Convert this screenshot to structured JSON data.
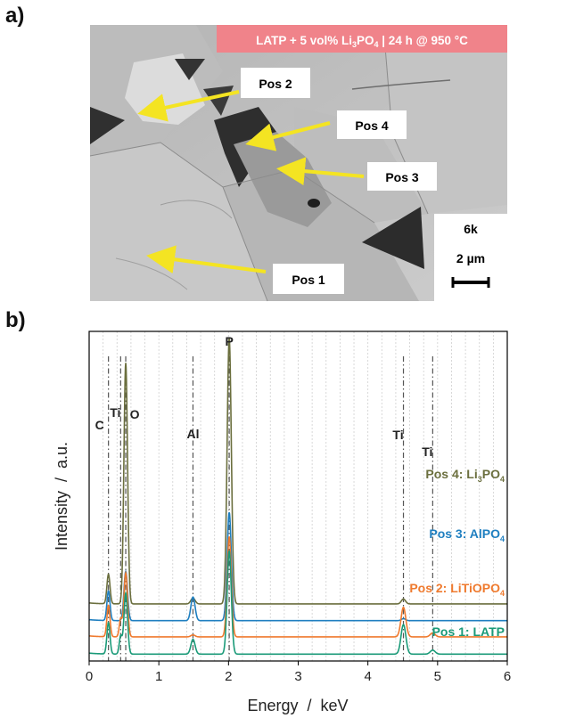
{
  "panel_a": {
    "letter": "a)",
    "banner": {
      "pre": "LATP + 5 vol% Li",
      "sub1": "3",
      "mid": "PO",
      "sub2": "4",
      "post": " | 24 h @ 950 °C",
      "color": "#f0838a"
    },
    "positions": [
      {
        "label": "Pos 1"
      },
      {
        "label": "Pos 2"
      },
      {
        "label": "Pos 3"
      },
      {
        "label": "Pos 4"
      }
    ],
    "scale": {
      "magnification": "6k",
      "length": "2 µm"
    },
    "arrow_color": "#f4e422"
  },
  "panel_b": {
    "letter": "b)"
  },
  "chart_data": {
    "type": "line",
    "xlabel": "Energy  /  keV",
    "ylabel": "Intensity  /  a.u.",
    "xlim": [
      0,
      6
    ],
    "xticks": [
      0,
      1,
      2,
      3,
      4,
      5,
      6
    ],
    "xtick_labels": [
      "0",
      "1",
      "2",
      "3",
      "4",
      "5",
      "6"
    ],
    "grid": true,
    "peak_lines": [
      {
        "label": "C",
        "x": 0.277
      },
      {
        "label": "Ti",
        "x": 0.452
      },
      {
        "label": "O",
        "x": 0.525
      },
      {
        "label": "Al",
        "x": 1.49
      },
      {
        "label": "P",
        "x": 2.01
      },
      {
        "label": "Ti",
        "x": 4.51
      },
      {
        "label": "Ti",
        "x": 4.93
      }
    ],
    "series": [
      {
        "name": "Pos 4: Li3PO4",
        "legend_main": "Pos 4: Li",
        "legend_sub1": "3",
        "legend_mid": "PO",
        "legend_sub2": "4",
        "color": "#6b6f3e",
        "baseline": 0.58,
        "peaks": [
          {
            "x": 0.277,
            "h": 0.3,
            "w": 0.022
          },
          {
            "x": 0.525,
            "h": 2.45,
            "w": 0.026
          },
          {
            "x": 1.49,
            "h": 0.06,
            "w": 0.03
          },
          {
            "x": 2.01,
            "h": 2.7,
            "w": 0.03
          },
          {
            "x": 4.51,
            "h": 0.05,
            "w": 0.03
          }
        ]
      },
      {
        "name": "Pos 3: AlPO4",
        "legend_main": "Pos 3: AlPO",
        "legend_sub1": "4",
        "color": "#1f7fc0",
        "baseline": 0.41,
        "peaks": [
          {
            "x": 0.277,
            "h": 0.3,
            "w": 0.022
          },
          {
            "x": 0.525,
            "h": 0.5,
            "w": 0.026
          },
          {
            "x": 1.49,
            "h": 0.24,
            "w": 0.03
          },
          {
            "x": 2.01,
            "h": 1.1,
            "w": 0.03
          },
          {
            "x": 4.51,
            "h": 0.02,
            "w": 0.03
          }
        ]
      },
      {
        "name": "Pos 2: LiTiOPO4",
        "legend_main": "Pos 2: LiTiOPO",
        "legend_sub1": "4",
        "color": "#ef7a2e",
        "baseline": 0.245,
        "peaks": [
          {
            "x": 0.277,
            "h": 0.32,
            "w": 0.022
          },
          {
            "x": 0.452,
            "h": 0.18,
            "w": 0.02
          },
          {
            "x": 0.525,
            "h": 0.65,
            "w": 0.026
          },
          {
            "x": 1.49,
            "h": 0.02,
            "w": 0.03
          },
          {
            "x": 2.01,
            "h": 1.02,
            "w": 0.03
          },
          {
            "x": 4.51,
            "h": 0.3,
            "w": 0.035
          },
          {
            "x": 4.93,
            "h": 0.04,
            "w": 0.035
          }
        ]
      },
      {
        "name": "Pos 1: LATP",
        "legend_main": "Pos 1: LATP",
        "color": "#1a9a78",
        "baseline": 0.07,
        "peaks": [
          {
            "x": 0.277,
            "h": 0.32,
            "w": 0.022
          },
          {
            "x": 0.452,
            "h": 0.18,
            "w": 0.02
          },
          {
            "x": 0.525,
            "h": 0.62,
            "w": 0.026
          },
          {
            "x": 1.49,
            "h": 0.15,
            "w": 0.03
          },
          {
            "x": 2.01,
            "h": 1.05,
            "w": 0.03
          },
          {
            "x": 4.51,
            "h": 0.3,
            "w": 0.035
          },
          {
            "x": 4.93,
            "h": 0.04,
            "w": 0.035
          }
        ]
      }
    ]
  }
}
